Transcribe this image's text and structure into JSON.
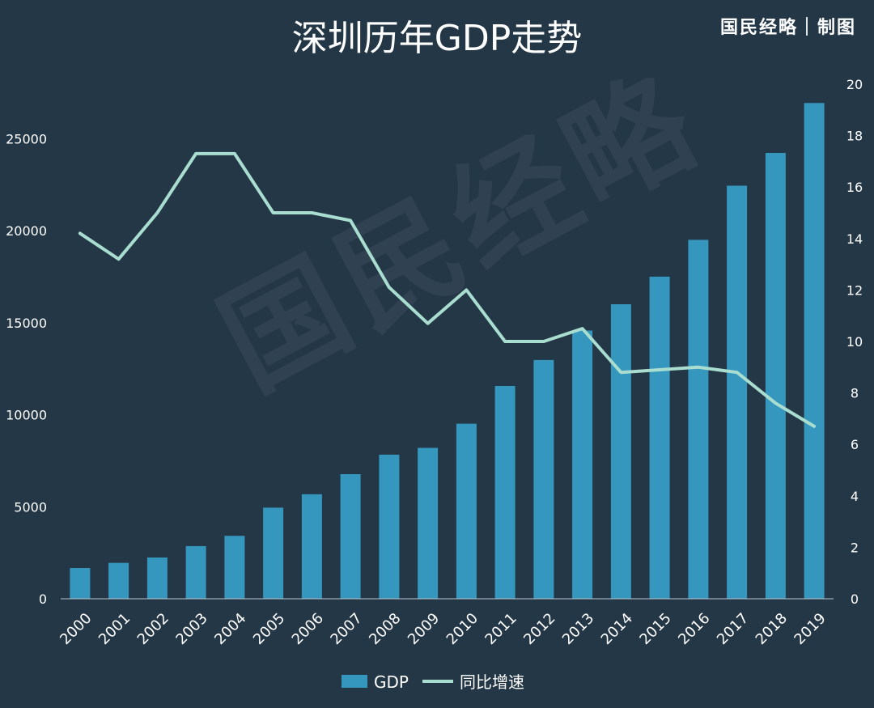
{
  "title": "深圳历年GDP走势",
  "brand": "国民经略｜制图",
  "watermark": "国民经略",
  "colors": {
    "background": "#243747",
    "bar": "#3596be",
    "line": "#a8ddd0"
  },
  "chart_data": {
    "type": "bar",
    "categories": [
      "2000",
      "2001",
      "2002",
      "2003",
      "2004",
      "2005",
      "2006",
      "2007",
      "2008",
      "2009",
      "2010",
      "2011",
      "2012",
      "2013",
      "2014",
      "2015",
      "2016",
      "2017",
      "2018",
      "2019"
    ],
    "series": [
      {
        "name": "GDP",
        "type": "bar",
        "axis": "left",
        "values": [
          1670,
          1950,
          2240,
          2860,
          3420,
          4950,
          5680,
          6770,
          7830,
          8200,
          9510,
          11560,
          12970,
          14570,
          16000,
          17500,
          19500,
          22440,
          24220,
          26930
        ]
      },
      {
        "name": "同比增速",
        "type": "line",
        "axis": "right",
        "values": [
          14.2,
          13.2,
          15.0,
          17.3,
          17.3,
          15.0,
          15.0,
          14.7,
          12.1,
          10.7,
          12.0,
          10.0,
          10.0,
          10.5,
          8.8,
          8.9,
          9.0,
          8.8,
          7.6,
          6.7
        ]
      }
    ],
    "ylim_left": [
      0,
      28000
    ],
    "yticks_left": [
      "0",
      "5000",
      "10000",
      "15000",
      "20000",
      "25000"
    ],
    "ylim_right": [
      0,
      20
    ],
    "yticks_right": [
      "0",
      "2",
      "4",
      "6",
      "8",
      "10",
      "12",
      "14",
      "16",
      "18",
      "20"
    ],
    "grid": false,
    "legend_position": "bottom"
  }
}
